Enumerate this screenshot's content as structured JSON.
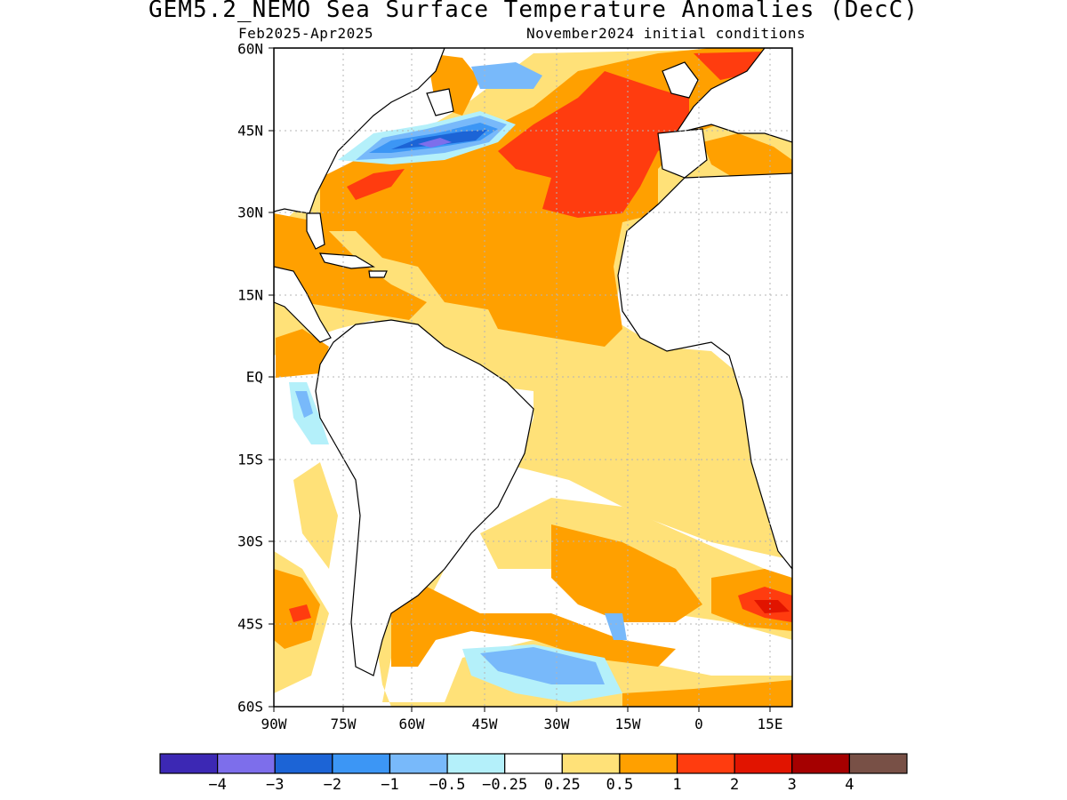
{
  "title": "GEM5.2_NEMO Sea Surface Temperature Anomalies (DecC)",
  "subtitle_left": "Feb2025-Apr2025",
  "subtitle_right": "November2024 initial conditions",
  "map": {
    "lat_labels": [
      "60N",
      "45N",
      "30N",
      "15N",
      "EQ",
      "15S",
      "30S",
      "45S",
      "60S"
    ],
    "lon_labels": [
      "90W",
      "75W",
      "60W",
      "45W",
      "30W",
      "15W",
      "0",
      "15E"
    ],
    "lon_range": [
      -90,
      15
    ],
    "lat_range": [
      -60,
      60
    ]
  },
  "colorbar": {
    "colors": [
      "#3c28b4",
      "#7d6eeb",
      "#1c64d6",
      "#3c96f5",
      "#78b9fa",
      "#b4f0fa",
      "#ffffff",
      "#ffe178",
      "#ffa000",
      "#ff3c0f",
      "#e11400",
      "#a50000",
      "#785046"
    ],
    "labels": [
      "-4",
      "-3",
      "-2",
      "-1",
      "-0.5",
      "-0.25",
      "0.25",
      "0.5",
      "1",
      "2",
      "3",
      "4"
    ]
  },
  "colors": {
    "land": "#ffffff",
    "grid": "#b4b4b4"
  }
}
